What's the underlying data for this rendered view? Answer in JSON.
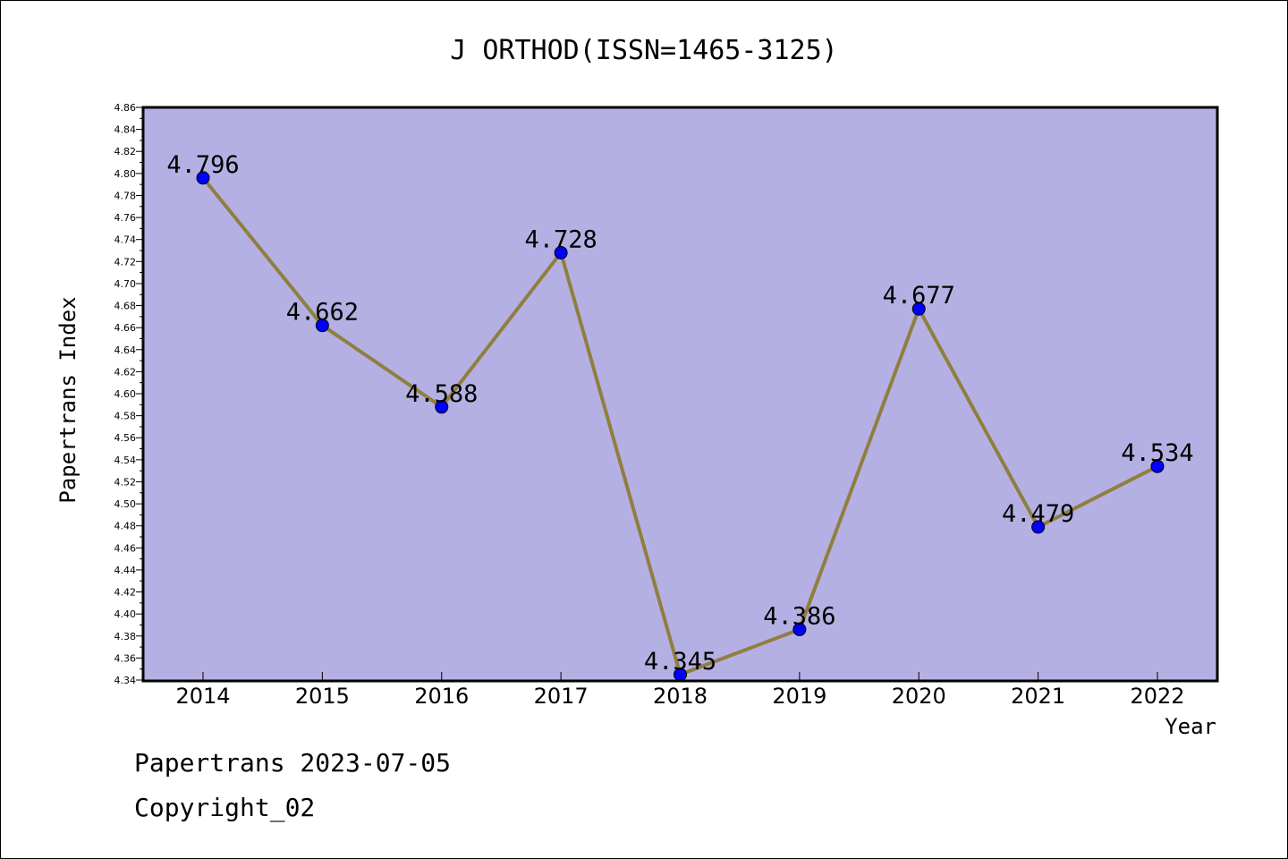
{
  "chart_data": {
    "type": "line",
    "title": "J ORTHOD(ISSN=1465-3125)",
    "xlabel": "Year",
    "ylabel": "Papertrans Index",
    "categories": [
      "2014",
      "2015",
      "2016",
      "2017",
      "2018",
      "2019",
      "2020",
      "2021",
      "2022"
    ],
    "values": [
      4.796,
      4.662,
      4.588,
      4.728,
      4.345,
      4.386,
      4.677,
      4.479,
      4.534
    ],
    "data_labels": [
      "4.796",
      "4.662",
      "4.588",
      "4.728",
      "4.345",
      "4.386",
      "4.677",
      "4.479",
      "4.534"
    ],
    "ylim": [
      4.34,
      4.86
    ],
    "ytick_step": 0.02,
    "grid": false,
    "legend": "none",
    "colors": {
      "plot_background": "#b5b0e3",
      "line": "#8f7f3f",
      "marker": "#0000ff",
      "axis": "#000000"
    }
  },
  "footer": {
    "line1": "Papertrans 2023-07-05",
    "line2": "Copyright_02"
  }
}
